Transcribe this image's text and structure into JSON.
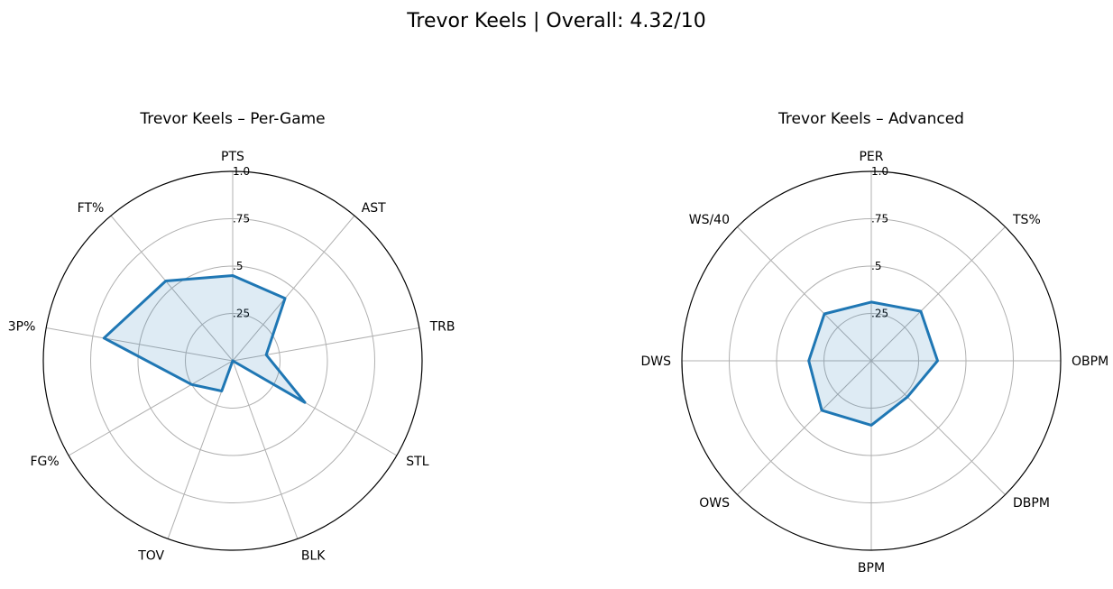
{
  "figure": {
    "title": "Trevor Keels | Overall: 4.32/10"
  },
  "colors": {
    "line": "#1f77b4",
    "fill": "#1f77b4",
    "grid": "#b0b0b0",
    "frame": "#000000"
  },
  "chart_data": [
    {
      "type": "radar",
      "title": "Trevor Keels – Per-Game",
      "axes": [
        "PTS",
        "AST",
        "TRB",
        "STL",
        "BLK",
        "TOV",
        "FG%",
        "3P%",
        "FT%"
      ],
      "values": [
        0.45,
        0.43,
        0.18,
        0.44,
        0.0,
        0.17,
        0.25,
        0.69,
        0.55
      ],
      "rlim": [
        0,
        1.0
      ],
      "rticks": [
        0.25,
        0.5,
        0.75,
        1.0
      ],
      "rtick_labels": [
        ".25",
        ".5",
        ".75",
        "1.0"
      ],
      "grid": true
    },
    {
      "type": "radar",
      "title": "Trevor Keels – Advanced",
      "axes": [
        "PER",
        "TS%",
        "OBPM",
        "DBPM",
        "BPM",
        "OWS",
        "DWS",
        "WS/40"
      ],
      "values": [
        0.31,
        0.37,
        0.35,
        0.27,
        0.34,
        0.37,
        0.33,
        0.35
      ],
      "rlim": [
        0,
        1.0
      ],
      "rticks": [
        0.25,
        0.5,
        0.75,
        1.0
      ],
      "rtick_labels": [
        ".25",
        ".5",
        ".75",
        "1.0"
      ],
      "grid": true
    }
  ]
}
